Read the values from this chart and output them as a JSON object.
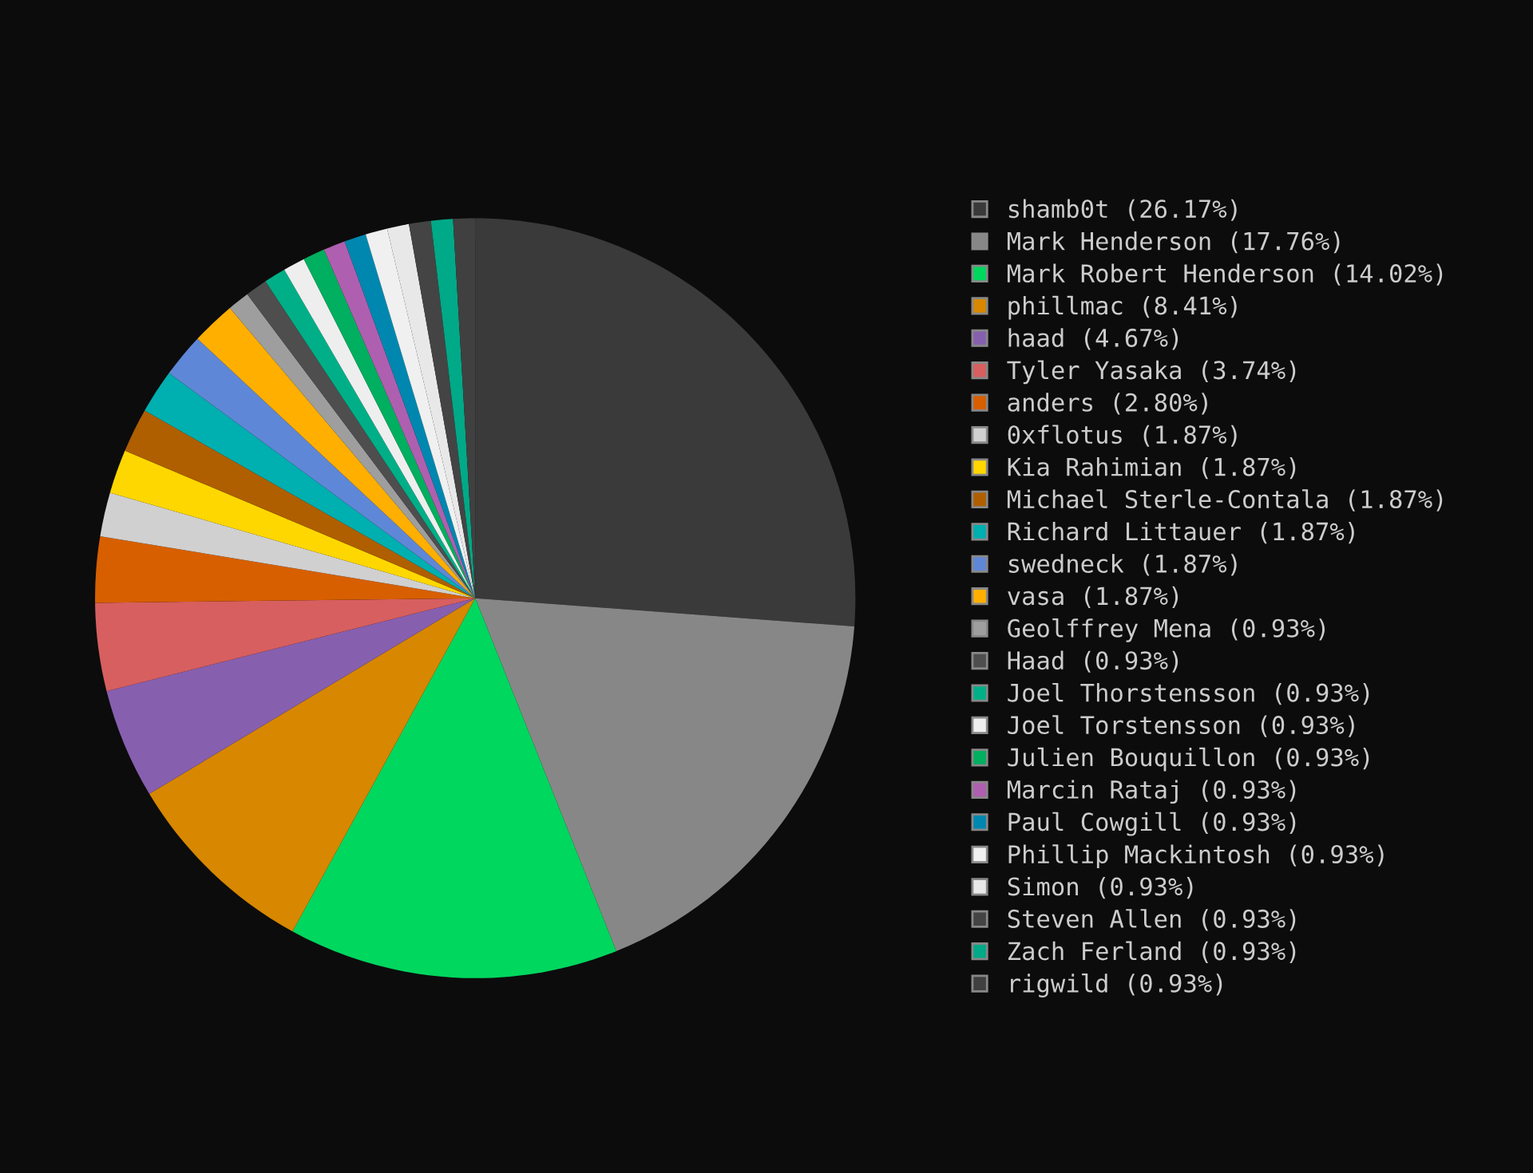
{
  "chart_data": {
    "type": "pie",
    "categories": [
      "shamb0t (26.17%)",
      "Mark Henderson (17.76%)",
      "Mark Robert Henderson (14.02%)",
      "phillmac (8.41%)",
      "haad (4.67%)",
      "Tyler Yasaka (3.74%)",
      "anders (2.80%)",
      "0xflotus (1.87%)",
      "Kia Rahimian (1.87%)",
      "Michael Sterle-Contala (1.87%)",
      "Richard Littauer (1.87%)",
      "swedneck (1.87%)",
      "vasa (1.87%)",
      "Geolffrey Mena (0.93%)",
      "Haad (0.93%)",
      "Joel Thorstensson (0.93%)",
      "Joel Torstensson (0.93%)",
      "Julien Bouquillon (0.93%)",
      "Marcin Rataj (0.93%)",
      "Paul Cowgill (0.93%)",
      "Phillip Mackintosh (0.93%)",
      "Simon (0.93%)",
      "Steven Allen (0.93%)",
      "Zach Ferland (0.93%)",
      "rigwild (0.93%)"
    ],
    "values": [
      26.17,
      17.76,
      14.02,
      8.41,
      4.67,
      3.74,
      2.8,
      1.87,
      1.87,
      1.87,
      1.87,
      1.87,
      1.87,
      0.93,
      0.93,
      0.93,
      0.93,
      0.93,
      0.93,
      0.93,
      0.93,
      0.93,
      0.93,
      0.93,
      0.93
    ],
    "colors": [
      "#3a3a3a",
      "#878787",
      "#00d75f",
      "#d78700",
      "#875faf",
      "#d75f5f",
      "#d75f00",
      "#d0d0d0",
      "#ffd700",
      "#af5f00",
      "#00afaf",
      "#5f87d7",
      "#ffaf00",
      "#9e9e9e",
      "#4e4e4e",
      "#00af87",
      "#eeeeee",
      "#00af5f",
      "#af5faf",
      "#0087af",
      "#f0f0f0",
      "#e8e8e8",
      "#444444",
      "#00a987",
      "#404040"
    ],
    "legend": "right"
  }
}
